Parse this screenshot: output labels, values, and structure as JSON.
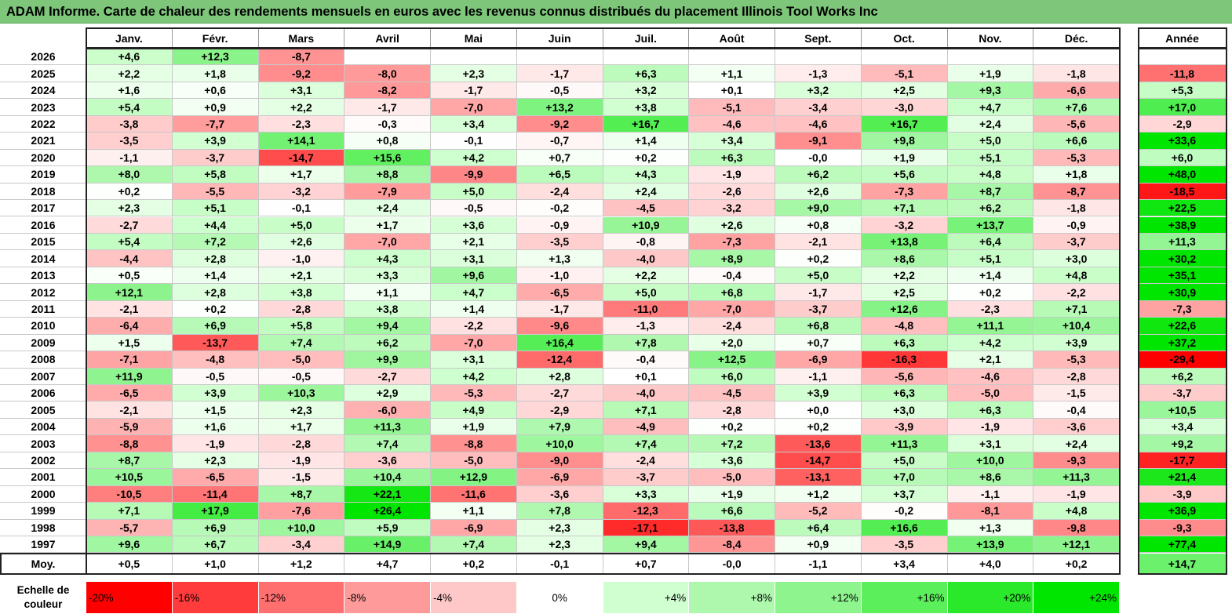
{
  "title": "ADAM Informe. Carte de chaleur des rendements mensuels en euros avec les revenus connus distribués du placement Illinois Tool Works Inc",
  "chart_data": {
    "type": "heatmap",
    "columns": [
      "Janv.",
      "Févr.",
      "Mars",
      "Avril",
      "Mai",
      "Juin",
      "Juil.",
      "Août",
      "Sept.",
      "Oct.",
      "Nov.",
      "Déc."
    ],
    "year_column": "Année",
    "rows": [
      {
        "label": "2026",
        "values": [
          "+4,6",
          "+12,3",
          "-8,7",
          "",
          "",
          "",
          "",
          "",
          "",
          "",
          "",
          ""
        ],
        "year": ""
      },
      {
        "label": "2025",
        "values": [
          "+2,2",
          "+1,8",
          "-9,2",
          "-8,0",
          "+2,3",
          "-1,7",
          "+6,3",
          "+1,1",
          "-1,3",
          "-5,1",
          "+1,9",
          "-1,8"
        ],
        "year": "-11,8"
      },
      {
        "label": "2024",
        "values": [
          "+1,6",
          "+0,6",
          "+3,1",
          "-8,2",
          "-1,7",
          "-0,5",
          "+3,2",
          "+0,1",
          "+3,2",
          "+2,5",
          "+9,3",
          "-6,6"
        ],
        "year": "+5,3"
      },
      {
        "label": "2023",
        "values": [
          "+5,4",
          "+0,9",
          "+2,2",
          "-1,7",
          "-7,0",
          "+13,2",
          "+3,8",
          "-5,1",
          "-3,4",
          "-3,0",
          "+4,7",
          "+7,6"
        ],
        "year": "+17,0"
      },
      {
        "label": "2022",
        "values": [
          "-3,8",
          "-7,7",
          "-2,3",
          "-0,3",
          "+3,4",
          "-9,2",
          "+16,7",
          "-4,6",
          "-4,6",
          "+16,7",
          "+2,4",
          "-5,6"
        ],
        "year": "-2,9"
      },
      {
        "label": "2021",
        "values": [
          "-3,5",
          "+3,9",
          "+14,1",
          "+0,8",
          "-0,1",
          "-0,7",
          "+1,4",
          "+3,4",
          "-9,1",
          "+9,8",
          "+5,0",
          "+6,6"
        ],
        "year": "+33,6"
      },
      {
        "label": "2020",
        "values": [
          "-1,1",
          "-3,7",
          "-14,7",
          "+15,6",
          "+4,2",
          "+0,7",
          "+0,2",
          "+6,3",
          "-0,0",
          "+1,9",
          "+5,1",
          "-5,3"
        ],
        "year": "+6,0"
      },
      {
        "label": "2019",
        "values": [
          "+8,0",
          "+5,8",
          "+1,7",
          "+8,8",
          "-9,9",
          "+6,5",
          "+4,3",
          "-1,9",
          "+6,2",
          "+5,6",
          "+4,8",
          "+1,8"
        ],
        "year": "+48,0"
      },
      {
        "label": "2018",
        "values": [
          "+0,2",
          "-5,5",
          "-3,2",
          "-7,9",
          "+5,0",
          "-2,4",
          "+2,4",
          "-2,6",
          "+2,6",
          "-7,3",
          "+8,7",
          "-8,7"
        ],
        "year": "-18,5"
      },
      {
        "label": "2017",
        "values": [
          "+2,3",
          "+5,1",
          "-0,1",
          "+2,4",
          "-0,5",
          "-0,2",
          "-4,5",
          "-3,2",
          "+9,0",
          "+7,1",
          "+6,2",
          "-1,8"
        ],
        "year": "+22,5"
      },
      {
        "label": "2016",
        "values": [
          "-2,7",
          "+4,4",
          "+5,0",
          "+1,7",
          "+3,6",
          "-0,9",
          "+10,9",
          "+2,6",
          "+0,8",
          "-3,2",
          "+13,7",
          "-0,9"
        ],
        "year": "+38,9"
      },
      {
        "label": "2015",
        "values": [
          "+5,4",
          "+7,2",
          "+2,6",
          "-7,0",
          "+2,1",
          "-3,5",
          "-0,8",
          "-7,3",
          "-2,1",
          "+13,8",
          "+6,4",
          "-3,7"
        ],
        "year": "+11,3"
      },
      {
        "label": "2014",
        "values": [
          "-4,4",
          "+2,8",
          "-1,0",
          "+4,3",
          "+3,1",
          "+1,3",
          "-4,0",
          "+8,9",
          "+0,2",
          "+8,6",
          "+5,1",
          "+3,0"
        ],
        "year": "+30,2"
      },
      {
        "label": "2013",
        "values": [
          "+0,5",
          "+1,4",
          "+2,1",
          "+3,3",
          "+9,6",
          "-1,0",
          "+2,2",
          "-0,4",
          "+5,0",
          "+2,2",
          "+1,4",
          "+4,8"
        ],
        "year": "+35,1"
      },
      {
        "label": "2012",
        "values": [
          "+12,1",
          "+2,8",
          "+3,8",
          "+1,1",
          "+4,7",
          "-6,5",
          "+5,0",
          "+6,8",
          "-1,7",
          "+2,5",
          "+0,2",
          "-2,2"
        ],
        "year": "+30,9"
      },
      {
        "label": "2011",
        "values": [
          "-2,1",
          "+0,2",
          "-2,8",
          "+3,8",
          "+1,4",
          "-1,7",
          "-11,0",
          "-7,0",
          "-3,7",
          "+12,6",
          "-2,3",
          "+7,1"
        ],
        "year": "-7,3"
      },
      {
        "label": "2010",
        "values": [
          "-6,4",
          "+6,9",
          "+5,8",
          "+9,4",
          "-2,2",
          "-9,6",
          "-1,3",
          "-2,4",
          "+6,8",
          "-4,8",
          "+11,1",
          "+10,4"
        ],
        "year": "+22,6"
      },
      {
        "label": "2009",
        "values": [
          "+1,5",
          "-13,7",
          "+7,4",
          "+6,2",
          "-7,0",
          "+16,4",
          "+7,8",
          "+2,0",
          "+0,7",
          "+6,3",
          "+4,2",
          "+3,9"
        ],
        "year": "+37,2"
      },
      {
        "label": "2008",
        "values": [
          "-7,1",
          "-4,8",
          "-5,0",
          "+9,9",
          "+3,1",
          "-12,4",
          "-0,4",
          "+12,5",
          "-6,9",
          "-16,3",
          "+2,1",
          "-5,3"
        ],
        "year": "-29,4"
      },
      {
        "label": "2007",
        "values": [
          "+11,9",
          "-0,5",
          "-0,5",
          "-2,7",
          "+4,2",
          "+2,8",
          "+0,1",
          "+6,0",
          "-1,1",
          "-5,6",
          "-4,6",
          "-2,8"
        ],
        "year": "+6,2"
      },
      {
        "label": "2006",
        "values": [
          "-6,5",
          "+3,9",
          "+10,3",
          "+2,9",
          "-5,3",
          "-2,7",
          "-4,0",
          "-4,5",
          "+3,9",
          "+6,3",
          "-5,0",
          "-1,5"
        ],
        "year": "-3,7"
      },
      {
        "label": "2005",
        "values": [
          "-2,1",
          "+1,5",
          "+2,3",
          "-6,0",
          "+4,9",
          "-2,9",
          "+7,1",
          "-2,8",
          "+0,0",
          "+3,0",
          "+6,3",
          "-0,4"
        ],
        "year": "+10,5"
      },
      {
        "label": "2004",
        "values": [
          "-5,9",
          "+1,6",
          "+1,7",
          "+11,3",
          "+1,9",
          "+7,9",
          "-4,9",
          "+0,2",
          "+0,2",
          "-3,9",
          "-1,9",
          "-3,6"
        ],
        "year": "+3,4"
      },
      {
        "label": "2003",
        "values": [
          "-8,8",
          "-1,9",
          "-2,8",
          "+7,4",
          "-8,8",
          "+10,0",
          "+7,4",
          "+7,2",
          "-13,6",
          "+11,3",
          "+3,1",
          "+2,4"
        ],
        "year": "+9,2"
      },
      {
        "label": "2002",
        "values": [
          "+8,7",
          "+2,3",
          "-1,9",
          "-3,6",
          "-5,0",
          "-9,0",
          "-2,4",
          "+3,6",
          "-14,7",
          "+5,0",
          "+10,0",
          "-9,3"
        ],
        "year": "-17,7"
      },
      {
        "label": "2001",
        "values": [
          "+10,5",
          "-6,5",
          "-1,5",
          "+10,4",
          "+12,9",
          "-6,9",
          "-3,7",
          "-5,0",
          "-13,1",
          "+7,0",
          "+8,6",
          "+11,3"
        ],
        "year": "+21,4"
      },
      {
        "label": "2000",
        "values": [
          "-10,5",
          "-11,4",
          "+8,7",
          "+22,1",
          "-11,6",
          "-3,6",
          "+3,3",
          "+1,9",
          "+1,2",
          "+3,7",
          "-1,1",
          "-1,9"
        ],
        "year": "-3,9"
      },
      {
        "label": "1999",
        "values": [
          "+7,1",
          "+17,9",
          "-7,6",
          "+26,4",
          "+1,1",
          "+7,8",
          "-12,3",
          "+6,6",
          "-5,2",
          "-0,2",
          "-8,1",
          "+4,8"
        ],
        "year": "+36,9"
      },
      {
        "label": "1998",
        "values": [
          "-5,7",
          "+6,9",
          "+10,0",
          "+5,9",
          "-6,9",
          "+2,3",
          "-17,1",
          "-13,8",
          "+6,4",
          "+16,6",
          "+1,3",
          "-9,8"
        ],
        "year": "-9,3"
      },
      {
        "label": "1997",
        "values": [
          "+9,6",
          "+6,7",
          "-3,4",
          "+14,9",
          "+7,4",
          "+2,3",
          "+9,4",
          "-8,4",
          "+0,9",
          "-3,5",
          "+13,9",
          "+12,1"
        ],
        "year": "+77,4"
      }
    ],
    "average_row": {
      "label": "Moy.",
      "values": [
        "+0,5",
        "+1,0",
        "+1,2",
        "+4,7",
        "+0,2",
        "-0,1",
        "+0,7",
        "-0,0",
        "-1,1",
        "+3,4",
        "+4,0",
        "+0,2"
      ],
      "year": "+14,7"
    },
    "color_scale": {
      "label_line1": "Echelle de",
      "label_line2": "couleur",
      "steps": [
        {
          "label": "-20%",
          "value": -20,
          "color": "#ff0000"
        },
        {
          "label": "-16%",
          "value": -16,
          "color": "#ff3b3b"
        },
        {
          "label": "-12%",
          "value": -12,
          "color": "#ff6f6f"
        },
        {
          "label": "-8%",
          "value": -8,
          "color": "#ff9a9a"
        },
        {
          "label": "-4%",
          "value": -4,
          "color": "#ffc8c8"
        },
        {
          "label": "0%",
          "value": 0,
          "color": "#ffffff"
        },
        {
          "label": "+4%",
          "value": 4,
          "color": "#d0ffd0"
        },
        {
          "label": "+8%",
          "value": 8,
          "color": "#aef8ae"
        },
        {
          "label": "+12%",
          "value": 12,
          "color": "#8ef48e"
        },
        {
          "label": "+16%",
          "value": 16,
          "color": "#5bef5b"
        },
        {
          "label": "+20%",
          "value": 20,
          "color": "#2ae82a"
        },
        {
          "label": "+24%",
          "value": 24,
          "color": "#00e600"
        }
      ]
    }
  }
}
